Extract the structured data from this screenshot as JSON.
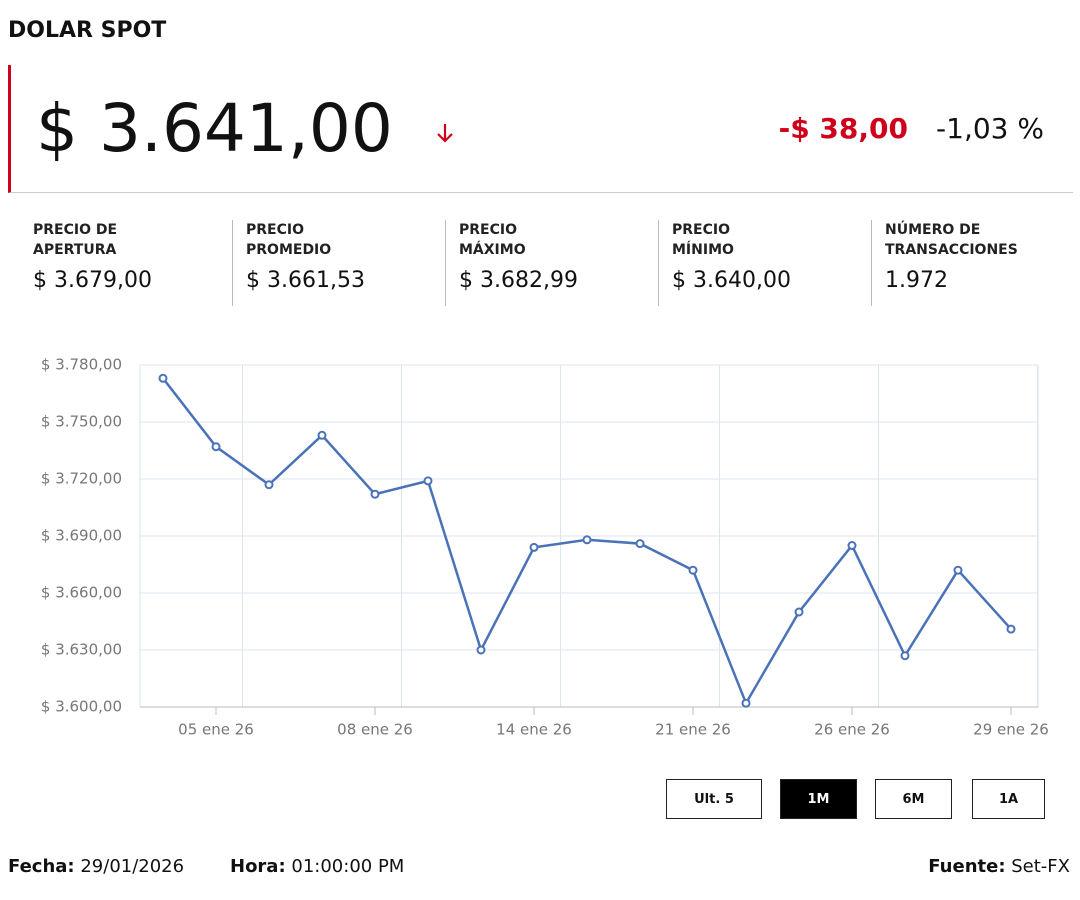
{
  "header": {
    "title": "DOLAR SPOT",
    "price": "$ 3.641,00",
    "change": "-$ 38,00",
    "change_pct": "-1,03 %"
  },
  "stats": [
    {
      "label": "PRECIO DE APERTURA",
      "value": "$ 3.679,00"
    },
    {
      "label": "PRECIO PROMEDIO",
      "value": "$ 3.661,53"
    },
    {
      "label": "PRECIO MÁXIMO",
      "value": "$ 3.682,99"
    },
    {
      "label": "PRECIO MÍNIMO",
      "value": "$ 3.640,00"
    },
    {
      "label": "NÚMERO DE TRANSACCIONES",
      "value": "1.972"
    }
  ],
  "chart_data": {
    "type": "line",
    "categories": [
      null,
      "05 ene 26",
      null,
      null,
      "08 ene 26",
      null,
      null,
      "14 ene 26",
      null,
      null,
      "21 ene 26",
      null,
      null,
      "26 ene 26",
      null,
      null,
      "29 ene 26"
    ],
    "series": [
      {
        "color": "#4a72b8",
        "values": [
          3773,
          3737,
          3717,
          3743,
          3712,
          3719,
          3630,
          3684,
          3688,
          3686,
          3672,
          3602,
          3650,
          3685,
          3627,
          3672,
          3641
        ]
      }
    ],
    "ylim": [
      3600,
      3780
    ],
    "yticks": [
      {
        "value": 3600,
        "label": "$ 3.600,00"
      },
      {
        "value": 3630,
        "label": "$ 3.630,00"
      },
      {
        "value": 3660,
        "label": "$ 3.660,00"
      },
      {
        "value": 3690,
        "label": "$ 3.690,00"
      },
      {
        "value": 3720,
        "label": "$ 3.720,00"
      },
      {
        "value": 3750,
        "label": "$ 3.750,00"
      },
      {
        "value": 3780,
        "label": "$ 3.780,00"
      }
    ],
    "grid": true
  },
  "buttons": [
    "Ult. 5",
    "1M",
    "6M",
    "1A"
  ],
  "footer": {
    "date": {
      "label": "Fecha:",
      "value": "29/01/2026"
    },
    "time": {
      "label": "Hora:",
      "value": "01:00:00 PM"
    },
    "source": {
      "label": "Fuente:",
      "value": "Set-FX"
    }
  }
}
